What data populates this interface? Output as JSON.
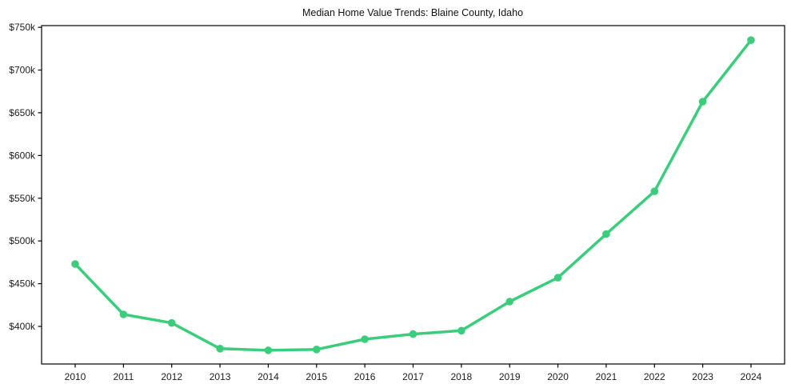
{
  "chart_data": {
    "type": "line",
    "title": "Median Home Value Trends: Blaine County, Idaho",
    "xlabel": "",
    "ylabel": "",
    "unit": "USD thousands",
    "x": [
      2010,
      2011,
      2012,
      2013,
      2014,
      2015,
      2016,
      2017,
      2018,
      2019,
      2020,
      2021,
      2022,
      2023,
      2024
    ],
    "xtick_labels": [
      "2010",
      "2011",
      "2012",
      "2013",
      "2014",
      "2015",
      "2016",
      "2017",
      "2018",
      "2019",
      "2020",
      "2021",
      "2022",
      "2023",
      "2024"
    ],
    "series": [
      {
        "name": "Median Home Value",
        "values": [
          473,
          414,
          404,
          374,
          372,
          373,
          385,
          391,
          395,
          429,
          457,
          508,
          558,
          663,
          735
        ]
      }
    ],
    "ylim": [
      356,
      752
    ],
    "yticks": [
      400,
      450,
      500,
      550,
      600,
      650,
      700,
      750
    ],
    "ytick_labels": [
      "$400k",
      "$450k",
      "$500k",
      "$550k",
      "$600k",
      "$650k",
      "$700k",
      "$750k"
    ],
    "grid": false,
    "legend": "none",
    "line_color": "#3bcd7c",
    "marker": "circle",
    "axis_color": "#000000",
    "text_color": "#1c1c1c",
    "background_color": "#ffffff"
  }
}
